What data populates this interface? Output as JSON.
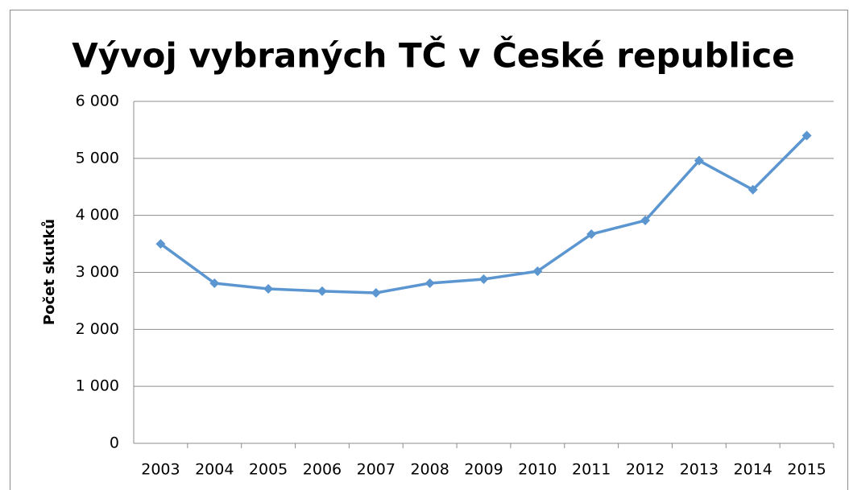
{
  "chart_data": {
    "type": "line",
    "title": "Vývoj vybraných TČ v České republice",
    "y_label": "Počet skutků",
    "categories": [
      "2003",
      "2004",
      "2005",
      "2006",
      "2007",
      "2008",
      "2009",
      "2010",
      "2011",
      "2012",
      "2013",
      "2014",
      "2015"
    ],
    "series": [
      {
        "name": "Počet skutků",
        "color": "#5b96d0",
        "values": [
          3500,
          2810,
          2710,
          2670,
          2640,
          2810,
          2880,
          3020,
          3670,
          3910,
          4960,
          4450,
          5400
        ]
      }
    ],
    "ylim": [
      0,
      6000
    ],
    "yticks": [
      0,
      {
        "value": 1000,
        "label": "1 000"
      },
      {
        "value": 2000,
        "label": "2 000"
      },
      {
        "value": 3000,
        "label": "3 000"
      },
      {
        "value": 4000,
        "label": "4 000"
      },
      {
        "value": 5000,
        "label": "5 000"
      },
      {
        "value": 6000,
        "label": "6 000"
      }
    ],
    "grid": true
  }
}
